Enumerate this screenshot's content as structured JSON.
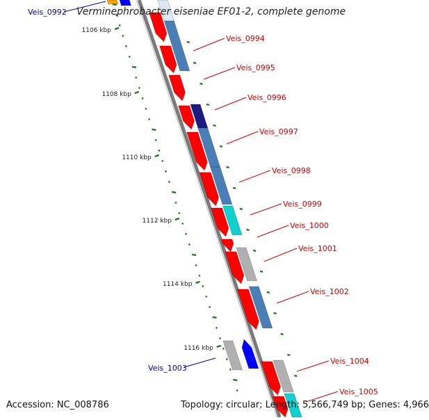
{
  "title": "Verminephrobacter eiseniae EF01-2, complete genome",
  "accession_text": "Accession: NC_008786",
  "summary_text": "Topology: circular; Length: 5,566,749 bp; Genes: 4,966",
  "ruler_labels": [
    "1106 kbp",
    "1108 kbp",
    "1110 kbp",
    "1112 kbp",
    "1114 kbp",
    "1116 kbp"
  ],
  "forward_gene_labels": [
    "Veis_0994",
    "Veis_0995",
    "Veis_0996",
    "Veis_0997",
    "Veis_0998",
    "Veis_0999",
    "Veis_1000",
    "Veis_1001",
    "Veis_1002",
    "Veis_1004",
    "Veis_1005"
  ],
  "reverse_gene_labels": [
    "Veis_0992",
    "Veis_1003"
  ],
  "colors": {
    "cds_forward": "#ff0000",
    "cds_reverse": "#0000ff",
    "cog_blue": "#4a7fb5",
    "cog_navy": "#1a1a80",
    "cog_cyan": "#10d0d0",
    "cog_gray": "#b0b0b0",
    "cog_orange": "#ffa500",
    "cog_light": "#dce8f4",
    "backbone": "#808080",
    "ruler_tick": "#1a7a1a",
    "forward_label": "#cc0000",
    "reverse_label": "#0000aa"
  }
}
